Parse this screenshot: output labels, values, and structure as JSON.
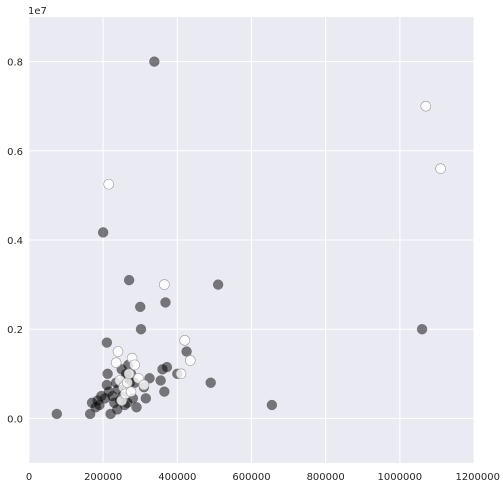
{
  "chart_data": {
    "type": "scatter",
    "title": "",
    "xlabel": "",
    "ylabel": "",
    "xlim": [
      0,
      1200000
    ],
    "ylim": [
      -1000000,
      9000000
    ],
    "y_offset_label": "1e7",
    "x_ticks": [
      0,
      200000,
      400000,
      600000,
      800000,
      1000000,
      1200000
    ],
    "x_tick_labels": [
      "0",
      "200000",
      "400000",
      "600000",
      "800000",
      "1000000",
      "1200000"
    ],
    "y_ticks": [
      0,
      2000000,
      4000000,
      6000000,
      8000000
    ],
    "y_tick_labels": [
      "0.0",
      "0.2",
      "0.4",
      "0.6",
      "0.8"
    ],
    "grid": true,
    "legend": "none",
    "colors": {
      "background": "#EAEAF2",
      "grid": "#FFFFFF",
      "dark_marker": "#000000",
      "light_marker": "#FFFFFF"
    },
    "series": [
      {
        "color": "dark",
        "points": [
          [
            75000,
            100000
          ],
          [
            165000,
            100000
          ],
          [
            170000,
            350000
          ],
          [
            180000,
            250000
          ],
          [
            185000,
            400000
          ],
          [
            190000,
            300000
          ],
          [
            195000,
            500000
          ],
          [
            200000,
            4170000
          ],
          [
            205000,
            450000
          ],
          [
            210000,
            1700000
          ],
          [
            210000,
            750000
          ],
          [
            212000,
            1000000
          ],
          [
            215000,
            600000
          ],
          [
            220000,
            100000
          ],
          [
            225000,
            500000
          ],
          [
            230000,
            350000
          ],
          [
            235000,
            800000
          ],
          [
            238000,
            200000
          ],
          [
            240000,
            650000
          ],
          [
            245000,
            400000
          ],
          [
            250000,
            1100000
          ],
          [
            252000,
            500000
          ],
          [
            255000,
            750000
          ],
          [
            258000,
            300000
          ],
          [
            260000,
            900000
          ],
          [
            262000,
            1000000
          ],
          [
            265000,
            350000
          ],
          [
            268000,
            1200000
          ],
          [
            270000,
            3100000
          ],
          [
            272000,
            800000
          ],
          [
            275000,
            1000000
          ],
          [
            280000,
            450000
          ],
          [
            285000,
            800000
          ],
          [
            290000,
            250000
          ],
          [
            300000,
            2500000
          ],
          [
            302000,
            2000000
          ],
          [
            310000,
            700000
          ],
          [
            315000,
            450000
          ],
          [
            325000,
            900000
          ],
          [
            338000,
            8000000
          ],
          [
            355000,
            850000
          ],
          [
            360000,
            1100000
          ],
          [
            365000,
            600000
          ],
          [
            368000,
            2600000
          ],
          [
            372000,
            1150000
          ],
          [
            400000,
            1000000
          ],
          [
            425000,
            1500000
          ],
          [
            490000,
            800000
          ],
          [
            510000,
            3000000
          ],
          [
            655000,
            300000
          ],
          [
            1060000,
            2000000
          ]
        ]
      },
      {
        "color": "light",
        "points": [
          [
            215000,
            5250000
          ],
          [
            235000,
            1250000
          ],
          [
            240000,
            1500000
          ],
          [
            245000,
            850000
          ],
          [
            250000,
            400000
          ],
          [
            255000,
            700000
          ],
          [
            260000,
            550000
          ],
          [
            265000,
            800000
          ],
          [
            270000,
            1000000
          ],
          [
            275000,
            600000
          ],
          [
            278000,
            1350000
          ],
          [
            285000,
            1200000
          ],
          [
            295000,
            900000
          ],
          [
            310000,
            750000
          ],
          [
            365000,
            3000000
          ],
          [
            410000,
            1000000
          ],
          [
            420000,
            1750000
          ],
          [
            435000,
            1300000
          ],
          [
            1070000,
            7000000
          ],
          [
            1110000,
            5600000
          ]
        ]
      }
    ]
  }
}
